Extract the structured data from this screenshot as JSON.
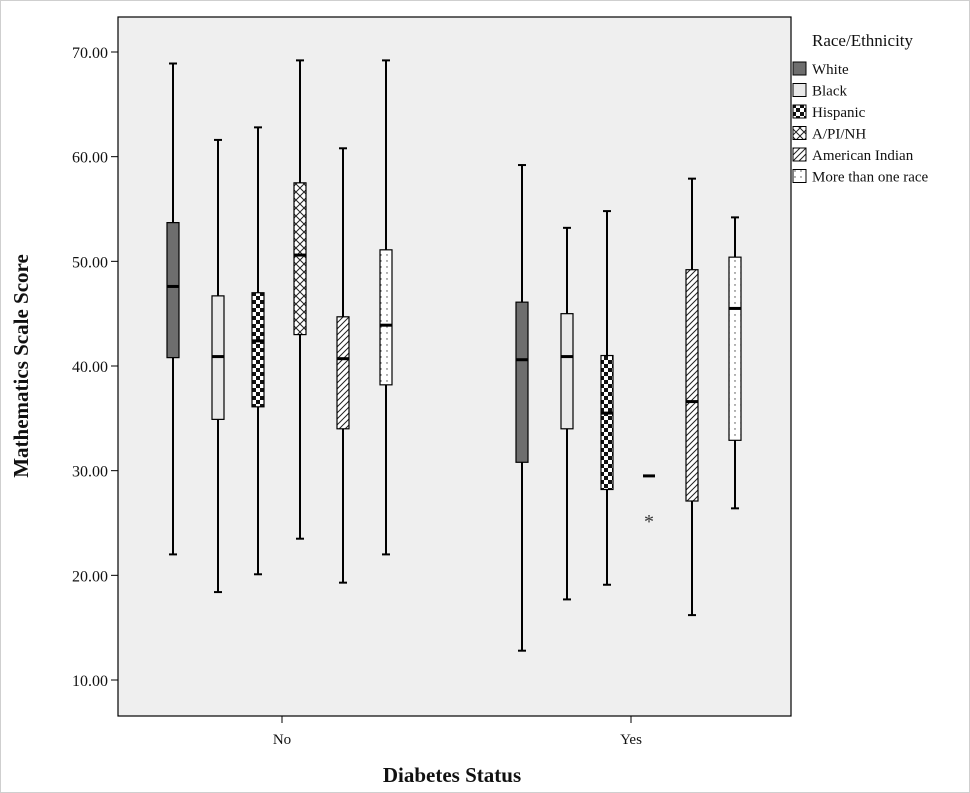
{
  "chart_data": {
    "type": "boxplot",
    "xlabel": "Diabetes Status",
    "ylabel": "Mathematics Scale Score",
    "ylim": [
      10,
      70
    ],
    "yticks": [
      "10.00",
      "20.00",
      "30.00",
      "40.00",
      "50.00",
      "60.00",
      "70.00"
    ],
    "ytick_values": [
      10,
      20,
      30,
      40,
      50,
      60,
      70
    ],
    "categories": [
      "No",
      "Yes"
    ],
    "legend_title": "Race/Ethnicity",
    "legend_position": "right",
    "plot_background": "#efefef",
    "series": [
      {
        "name": "White",
        "pattern": "solid-dark",
        "boxes": [
          {
            "min": 22.0,
            "q1": 40.8,
            "median": 47.6,
            "q3": 53.7,
            "max": 68.9
          },
          {
            "min": 12.8,
            "q1": 30.8,
            "median": 40.6,
            "q3": 46.1,
            "max": 59.2
          }
        ]
      },
      {
        "name": "Black",
        "pattern": "light",
        "boxes": [
          {
            "min": 18.4,
            "q1": 34.9,
            "median": 40.9,
            "q3": 46.7,
            "max": 61.6
          },
          {
            "min": 17.7,
            "q1": 34.0,
            "median": 40.9,
            "q3": 45.0,
            "max": 53.2
          }
        ]
      },
      {
        "name": "Hispanic",
        "pattern": "checker",
        "boxes": [
          {
            "min": 20.1,
            "q1": 36.1,
            "median": 42.4,
            "q3": 47.0,
            "max": 62.8
          },
          {
            "min": 19.1,
            "q1": 28.2,
            "median": 35.5,
            "q3": 41.0,
            "max": 54.8
          }
        ]
      },
      {
        "name": "A/PI/NH",
        "pattern": "crosshatch",
        "boxes": [
          {
            "min": 23.5,
            "q1": 43.0,
            "median": 50.6,
            "q3": 57.5,
            "max": 69.2
          },
          {
            "median": 29.5,
            "outliers": [
              25.2
            ]
          }
        ]
      },
      {
        "name": "American Indian",
        "pattern": "diagonal",
        "boxes": [
          {
            "min": 19.3,
            "q1": 34.0,
            "median": 40.7,
            "q3": 44.7,
            "max": 60.8
          },
          {
            "min": 16.2,
            "q1": 27.1,
            "median": 36.6,
            "q3": 49.2,
            "max": 57.9
          }
        ]
      },
      {
        "name": "More than one race",
        "pattern": "dotted",
        "boxes": [
          {
            "min": 22.0,
            "q1": 38.2,
            "median": 43.9,
            "q3": 51.1,
            "max": 69.2
          },
          {
            "min": 26.4,
            "q1": 32.9,
            "median": 45.5,
            "q3": 50.4,
            "max": 54.2
          }
        ]
      }
    ]
  }
}
